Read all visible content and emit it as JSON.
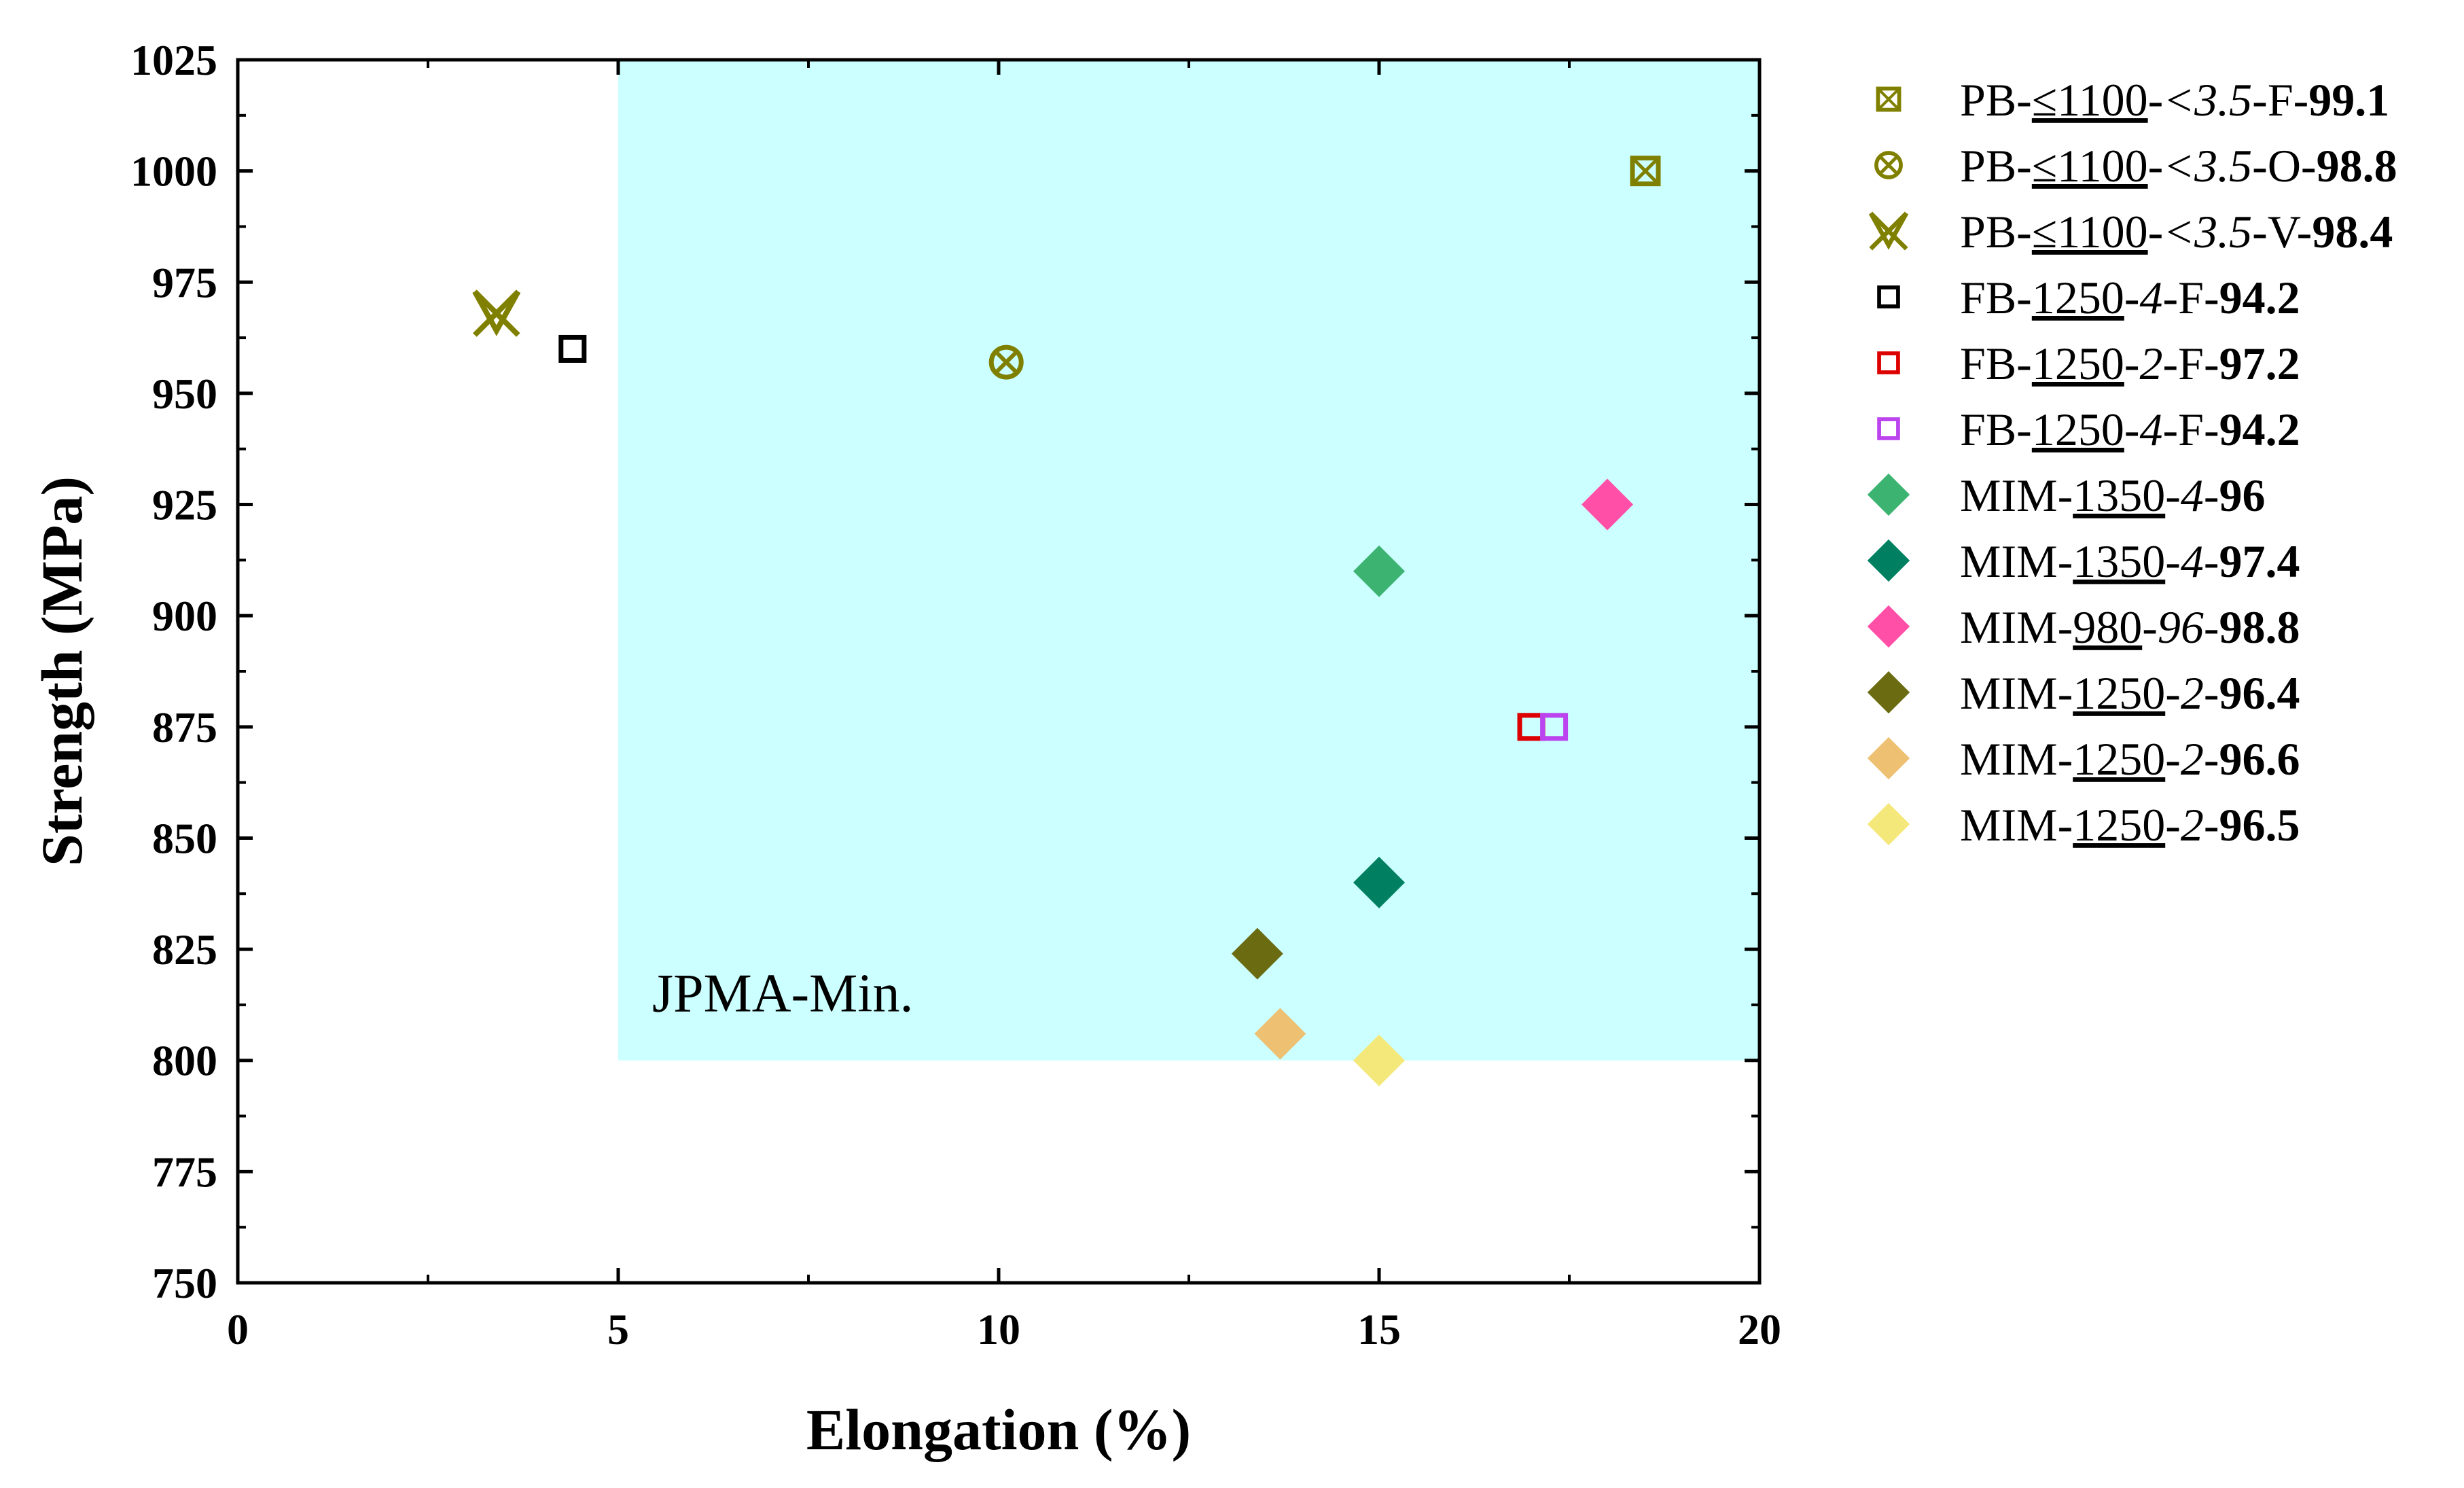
{
  "chart_data": {
    "type": "scatter",
    "xlabel": "Elongation (%)",
    "ylabel": "Strength (MPa)",
    "xlim": [
      0,
      20
    ],
    "ylim": [
      750,
      1025
    ],
    "xticks": [
      0,
      5,
      10,
      15,
      20
    ],
    "yticks": [
      750,
      775,
      800,
      825,
      850,
      875,
      900,
      925,
      950,
      975,
      1000,
      1025
    ],
    "grid": false,
    "legend_position": "right",
    "region": {
      "label": "JPMA-Min.",
      "x_min": 5,
      "y_min": 800,
      "color": "#ccffff"
    },
    "series": [
      {
        "name": "PB-≤1100-<3.5-F-99.1",
        "parts": [
          [
            "PB-",
            ""
          ],
          [
            "≤1100",
            "u"
          ],
          [
            "-",
            ""
          ],
          [
            "<3.5",
            "i"
          ],
          [
            "-F-",
            ""
          ],
          [
            "99.1",
            "b"
          ]
        ],
        "marker": "square-x",
        "color": "#808000",
        "points": [
          [
            18.5,
            1000
          ]
        ]
      },
      {
        "name": "PB-≤1100-<3.5-O-98.8",
        "parts": [
          [
            "PB-",
            ""
          ],
          [
            "≤1100",
            "u"
          ],
          [
            "-",
            ""
          ],
          [
            "<3.5",
            "i"
          ],
          [
            "-O-",
            ""
          ],
          [
            "98.8",
            "b"
          ]
        ],
        "marker": "circle-x",
        "color": "#808000",
        "points": [
          [
            10.1,
            957
          ]
        ]
      },
      {
        "name": "PB-≤1100-<3.5-V-98.4",
        "parts": [
          [
            "PB-",
            ""
          ],
          [
            "≤1100",
            "u"
          ],
          [
            "-",
            ""
          ],
          [
            "<3.5",
            "i"
          ],
          [
            "-V-",
            ""
          ],
          [
            "98.4",
            "b"
          ]
        ],
        "marker": "v-x",
        "color": "#808000",
        "points": [
          [
            3.4,
            968
          ]
        ]
      },
      {
        "name": "FB-1250-4-F-94.2",
        "parts": [
          [
            "FB-",
            ""
          ],
          [
            "1250",
            "u"
          ],
          [
            "-",
            ""
          ],
          [
            "4",
            "i"
          ],
          [
            "-F-",
            ""
          ],
          [
            "94.2",
            "b"
          ]
        ],
        "marker": "square-open",
        "color": "#000000",
        "points": [
          [
            4.4,
            960
          ]
        ]
      },
      {
        "name": "FB-1250-2-F-97.2",
        "parts": [
          [
            "FB-",
            ""
          ],
          [
            "1250",
            "u"
          ],
          [
            "-",
            ""
          ],
          [
            "2",
            "i"
          ],
          [
            "-F-",
            ""
          ],
          [
            "97.2",
            "b"
          ]
        ],
        "marker": "square-open",
        "color": "#dd0000",
        "points": [
          [
            17.0,
            875
          ]
        ]
      },
      {
        "name": "FB-1250-4-F-94.2",
        "parts": [
          [
            "FB-",
            ""
          ],
          [
            "1250",
            "u"
          ],
          [
            "-",
            ""
          ],
          [
            "4",
            "i"
          ],
          [
            "-F-",
            ""
          ],
          [
            "94.2",
            "b"
          ]
        ],
        "marker": "square-open",
        "color": "#bb44ee",
        "points": [
          [
            17.3,
            875
          ]
        ]
      },
      {
        "name": "MIM-1350-4-96",
        "parts": [
          [
            "MIM-",
            ""
          ],
          [
            "1350",
            "u"
          ],
          [
            "-",
            ""
          ],
          [
            "4",
            "i"
          ],
          [
            "-",
            ""
          ],
          [
            "96",
            "b"
          ]
        ],
        "marker": "diamond",
        "color": "#3cb371",
        "points": [
          [
            15.0,
            910
          ]
        ]
      },
      {
        "name": "MIM-1350-4-97.4",
        "parts": [
          [
            "MIM-",
            ""
          ],
          [
            "1350",
            "u"
          ],
          [
            "-",
            ""
          ],
          [
            "4",
            "i"
          ],
          [
            "-",
            ""
          ],
          [
            "97.4",
            "b"
          ]
        ],
        "marker": "diamond",
        "color": "#008060",
        "points": [
          [
            15.0,
            840
          ]
        ]
      },
      {
        "name": "MIM-980-96-98.8",
        "parts": [
          [
            "MIM-",
            ""
          ],
          [
            "980",
            "u"
          ],
          [
            "-",
            ""
          ],
          [
            "96",
            "i"
          ],
          [
            "-",
            ""
          ],
          [
            "98.8",
            "b"
          ]
        ],
        "marker": "diamond",
        "color": "#ff4fa7",
        "points": [
          [
            18.0,
            925
          ]
        ]
      },
      {
        "name": "MIM-1250-2-96.4",
        "parts": [
          [
            "MIM-",
            ""
          ],
          [
            "1250",
            "u"
          ],
          [
            "-",
            ""
          ],
          [
            "2",
            "i"
          ],
          [
            "-",
            ""
          ],
          [
            "96.4",
            "b"
          ]
        ],
        "marker": "diamond",
        "color": "#6b6b12",
        "points": [
          [
            13.4,
            824
          ]
        ]
      },
      {
        "name": "MIM-1250-2-96.6",
        "parts": [
          [
            "MIM-",
            ""
          ],
          [
            "1250",
            "u"
          ],
          [
            "-",
            ""
          ],
          [
            "2",
            "i"
          ],
          [
            "-",
            ""
          ],
          [
            "96.6",
            "b"
          ]
        ],
        "marker": "diamond",
        "color": "#edc072",
        "points": [
          [
            13.7,
            806
          ]
        ]
      },
      {
        "name": "MIM-1250-2-96.5",
        "parts": [
          [
            "MIM-",
            ""
          ],
          [
            "1250",
            "u"
          ],
          [
            "-",
            ""
          ],
          [
            "2",
            "i"
          ],
          [
            "-",
            ""
          ],
          [
            "96.5",
            "b"
          ]
        ],
        "marker": "diamond",
        "color": "#f5e87a",
        "points": [
          [
            15.0,
            800
          ]
        ]
      }
    ]
  }
}
